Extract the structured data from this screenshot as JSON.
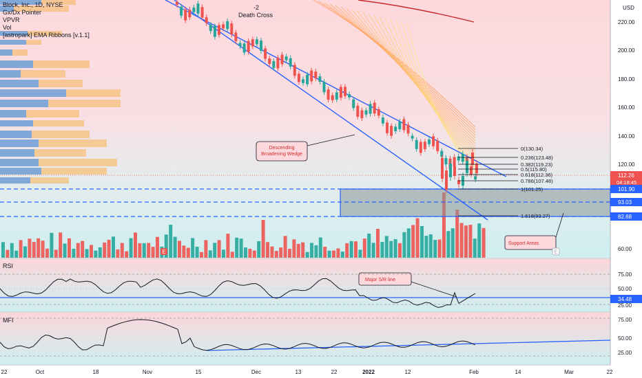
{
  "colors": {
    "up": "#26a69a",
    "down": "#ef5350",
    "bg_top": "#fdd8dc",
    "bg_bottom": "#cfeff0",
    "wedge": "#2962ff",
    "support_zone": "#7f8c8d",
    "rsi_line": "#131722",
    "mfi_line": "#131722",
    "trend": "#2962ff"
  },
  "legend": {
    "title": "Block, Inc., 1D, NYSE",
    "items": [
      "Gx/Dx Pointer",
      "VPVR",
      "Vol",
      "[astropark] EMA Ribbons [v.1.1]"
    ]
  },
  "price_axis": {
    "currency": "USD",
    "ticks": [
      "220.00",
      "200.00",
      "180.00",
      "160.00",
      "140.00",
      "120.00",
      "100.00",
      "60.00"
    ],
    "current_price": "112.26",
    "countdown": "04:18:45",
    "level_1": "101.90",
    "level_2": "93.03",
    "level_3": "82.68"
  },
  "time_axis": {
    "ticks": [
      "22",
      "Oct",
      "18",
      "Nov",
      "15",
      "Dec",
      "13",
      "22",
      "2022",
      "12",
      "Feb",
      "14",
      "Mar",
      "22"
    ]
  },
  "annotations": {
    "death_cross_count": "-2",
    "death_cross": "Death Cross",
    "wedge_label_1": "Descending",
    "wedge_label_2": "Broadening Wedge",
    "support": "Support Areas",
    "rsi_note": "Major S/R line",
    "e_marker": "E"
  },
  "fib": [
    {
      "label": "0(130.34)"
    },
    {
      "label": "0.236(123.48)"
    },
    {
      "label": "0.382(119.23)"
    },
    {
      "label": "0.5(115.80)"
    },
    {
      "label": "0.618(112.36)"
    },
    {
      "label": "0.786(107.48)"
    },
    {
      "label": "1(101.25)"
    },
    {
      "label": "1.618(83.27)"
    }
  ],
  "rsi": {
    "title": "RSI",
    "ticks": [
      "75.00",
      "50.00",
      "25.00"
    ],
    "value": "34.48"
  },
  "mfi": {
    "title": "MFI",
    "ticks": [
      "75.00",
      "50.00",
      "25.00"
    ]
  }
}
